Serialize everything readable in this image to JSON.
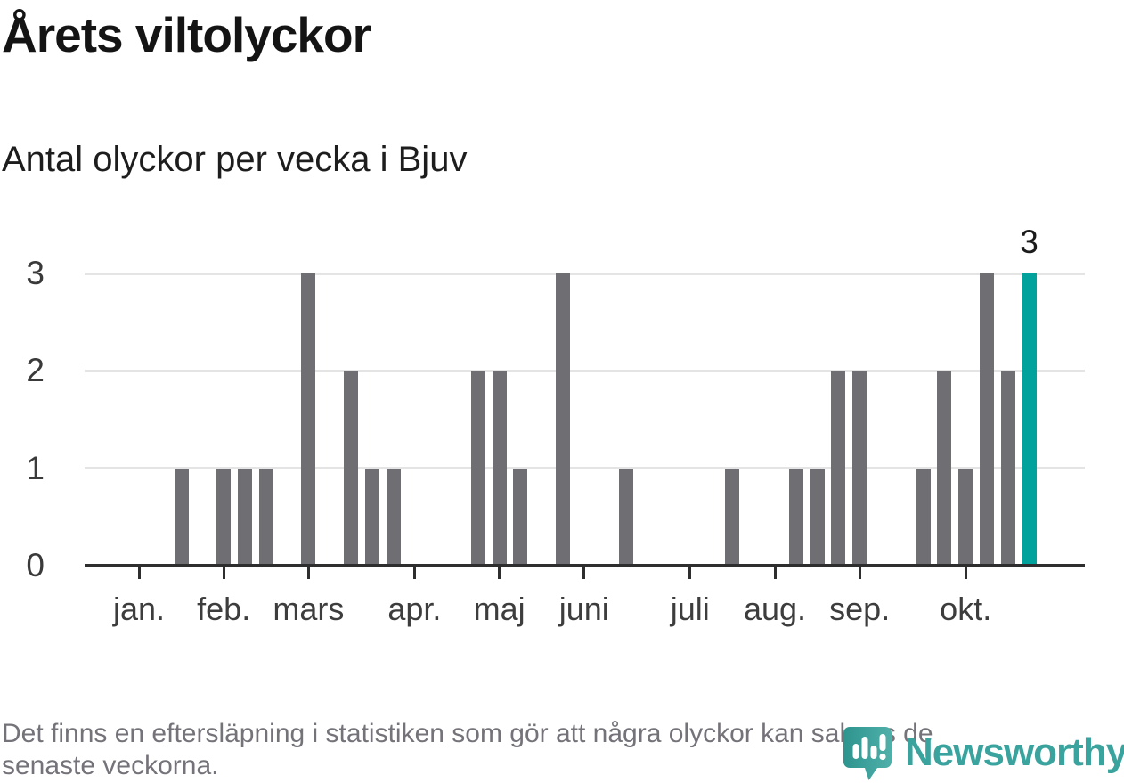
{
  "header": {
    "title": "Årets viltolyckor",
    "subtitle": "Antal olyckor per vecka i Bjuv"
  },
  "chart_data": {
    "type": "bar",
    "title": "Årets viltolyckor",
    "subtitle": "Antal olyckor per vecka i Bjuv",
    "xlabel": "",
    "ylabel": "",
    "x_unit": "vecka (ISO-veckonummer, en stapel per vecka)",
    "first_week": 1,
    "values": [
      0,
      0,
      1,
      0,
      1,
      1,
      1,
      0,
      3,
      0,
      2,
      1,
      1,
      0,
      0,
      0,
      2,
      2,
      1,
      0,
      3,
      0,
      0,
      1,
      0,
      0,
      0,
      0,
      1,
      0,
      0,
      1,
      1,
      2,
      2,
      0,
      0,
      1,
      2,
      1,
      3,
      2,
      3
    ],
    "month_ticks": [
      {
        "label": "jan.",
        "week": 1
      },
      {
        "label": "feb.",
        "week": 5
      },
      {
        "label": "mars",
        "week": 9
      },
      {
        "label": "apr.",
        "week": 14
      },
      {
        "label": "maj",
        "week": 18
      },
      {
        "label": "juni",
        "week": 22
      },
      {
        "label": "juli",
        "week": 27
      },
      {
        "label": "aug.",
        "week": 31
      },
      {
        "label": "sep.",
        "week": 35
      },
      {
        "label": "okt.",
        "week": 40
      }
    ],
    "yticks": [
      0,
      1,
      2,
      3
    ],
    "ylim": [
      0,
      3
    ],
    "grid": "horizontal-light",
    "legend": "none",
    "highlight": {
      "week": 43,
      "value": 3,
      "label": "3"
    },
    "colors": {
      "bar": "#6e6e73",
      "highlight_bar": "#00a29b",
      "axis": "#2e2e2e",
      "grid": "#e4e4e4",
      "tick_label": "#3a3a3a",
      "month_label": "#3d3d3d",
      "annotation": "#1b1b1b"
    }
  },
  "footer": {
    "note_line1": "Det finns en eftersläpning i statistiken som gör att några olyckor kan saknas de",
    "note_line2": "senaste veckorna.",
    "note_color": "#757379"
  },
  "logo": {
    "wordmark": "Newsworthy",
    "icon": "newsworthy-speech-bubble-bar-chart-icon",
    "wordmark_color": "#3aa39e",
    "icon_gradient_left": "#2e948e",
    "icon_gradient_right": "#4fb0a9"
  }
}
